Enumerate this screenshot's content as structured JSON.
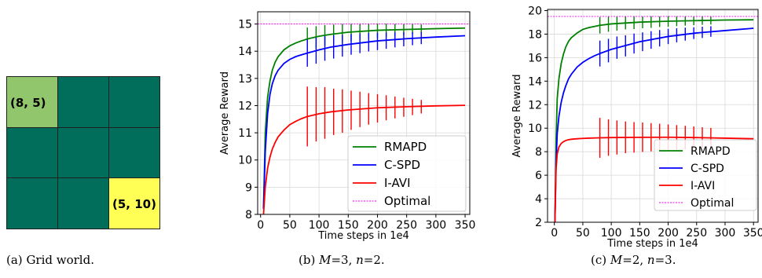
{
  "colors": {
    "grid_cell": "#006e5a",
    "grid_start": "#92c66c",
    "grid_goal": "#ffff55",
    "rmapd": "#008000",
    "cspd": "#0000ff",
    "iavi": "#ff0000",
    "optimal": "#ee00ee"
  },
  "grid_world": {
    "rows": 3,
    "cols": 3,
    "start": {
      "row": 0,
      "col": 0,
      "label": "(8, 5)"
    },
    "goal": {
      "row": 2,
      "col": 2,
      "label": "(5, 10)"
    }
  },
  "captions": {
    "a": {
      "tag": "(a)",
      "text": "Grid world."
    },
    "b": {
      "tag": "(b)",
      "m": "M",
      "m_val": "=3, ",
      "n": "n",
      "n_val": "=2."
    },
    "c": {
      "tag": "(c)",
      "m": "M",
      "m_val": "=2, ",
      "n": "n",
      "n_val": "=3."
    }
  },
  "chart_data": [
    {
      "type": "line",
      "xlabel": "Time steps in 1e4",
      "ylabel": "Average Reward",
      "xlim": [
        -5,
        358
      ],
      "ylim": [
        8,
        15.45
      ],
      "xticks": [
        0,
        50,
        100,
        150,
        200,
        250,
        300,
        350
      ],
      "yticks": [
        8,
        9,
        10,
        11,
        12,
        13,
        14,
        15
      ],
      "grid": true,
      "legend_position": "lower-right",
      "series": [
        {
          "name": "RMAPD",
          "color_key": "rmapd",
          "x": [
            5,
            8,
            12,
            16,
            20,
            25,
            30,
            40,
            50,
            60,
            70,
            80,
            100,
            120,
            150,
            200,
            250,
            300,
            350
          ],
          "y": [
            8.2,
            11.0,
            12.3,
            12.9,
            13.3,
            13.6,
            13.8,
            14.05,
            14.2,
            14.3,
            14.38,
            14.45,
            14.55,
            14.62,
            14.7,
            14.77,
            14.8,
            14.83,
            14.85
          ],
          "errorbars": {
            "x": [
              80,
              95,
              110,
              125,
              140,
              155,
              170,
              185,
              200,
              215,
              230,
              245,
              260,
              275
            ],
            "y": [
              14.45,
              14.52,
              14.58,
              14.62,
              14.66,
              14.69,
              14.72,
              14.74,
              14.76,
              14.77,
              14.78,
              14.8,
              14.81,
              14.82
            ],
            "err": [
              0.42,
              0.4,
              0.38,
              0.36,
              0.34,
              0.32,
              0.3,
              0.28,
              0.26,
              0.24,
              0.22,
              0.2,
              0.18,
              0.16
            ]
          }
        },
        {
          "name": "C-SPD",
          "color_key": "cspd",
          "x": [
            5,
            8,
            12,
            16,
            20,
            25,
            30,
            40,
            50,
            60,
            70,
            80,
            100,
            120,
            150,
            200,
            250,
            300,
            350
          ],
          "y": [
            8.2,
            10.3,
            11.7,
            12.4,
            12.8,
            13.1,
            13.3,
            13.55,
            13.7,
            13.8,
            13.87,
            13.93,
            14.05,
            14.15,
            14.25,
            14.38,
            14.46,
            14.52,
            14.57
          ],
          "errorbars": {
            "x": [
              80,
              95,
              110,
              125,
              140,
              155,
              170,
              185,
              200,
              215,
              230,
              245,
              260,
              275
            ],
            "y": [
              13.93,
              14.02,
              14.1,
              14.16,
              14.2,
              14.25,
              14.29,
              14.33,
              14.36,
              14.39,
              14.42,
              14.44,
              14.46,
              14.48
            ],
            "err": [
              0.5,
              0.48,
              0.45,
              0.43,
              0.4,
              0.38,
              0.36,
              0.34,
              0.32,
              0.3,
              0.28,
              0.26,
              0.24,
              0.22
            ]
          }
        },
        {
          "name": "I-AVI",
          "color_key": "iavi",
          "x": [
            5,
            8,
            12,
            16,
            20,
            25,
            30,
            40,
            50,
            60,
            70,
            80,
            100,
            120,
            150,
            200,
            250,
            300,
            350
          ],
          "y": [
            8.0,
            9.0,
            9.7,
            10.1,
            10.4,
            10.65,
            10.85,
            11.1,
            11.3,
            11.42,
            11.52,
            11.6,
            11.7,
            11.77,
            11.84,
            11.92,
            11.96,
            11.99,
            12.01
          ],
          "errorbars": {
            "x": [
              80,
              95,
              110,
              125,
              140,
              155,
              170,
              185,
              200,
              215,
              230,
              245,
              260,
              275
            ],
            "y": [
              11.6,
              11.68,
              11.73,
              11.77,
              11.8,
              11.83,
              11.86,
              11.88,
              11.9,
              11.92,
              11.93,
              11.94,
              11.95,
              11.96
            ],
            "err": [
              1.1,
              1.0,
              0.95,
              0.85,
              0.8,
              0.72,
              0.65,
              0.58,
              0.52,
              0.46,
              0.4,
              0.35,
              0.3,
              0.25
            ]
          }
        },
        {
          "name": "Optimal",
          "color_key": "optimal",
          "dashed": true,
          "x": [
            -5,
            358
          ],
          "y": [
            15.0,
            15.0
          ]
        }
      ]
    },
    {
      "type": "line",
      "xlabel": "Time steps in 1e4",
      "ylabel": "Average Reward",
      "xlim": [
        -12,
        358
      ],
      "ylim": [
        2,
        20.1
      ],
      "xticks": [
        0,
        50,
        100,
        150,
        200,
        250,
        300,
        350
      ],
      "yticks": [
        2,
        4,
        6,
        8,
        10,
        12,
        14,
        16,
        18,
        20
      ],
      "grid": true,
      "legend_position": "lower-right",
      "series": [
        {
          "name": "RMAPD",
          "color_key": "rmapd",
          "x": [
            1,
            3,
            5,
            8,
            12,
            16,
            20,
            25,
            30,
            40,
            50,
            60,
            70,
            80,
            100,
            150,
            200,
            250,
            300,
            350
          ],
          "y": [
            2.0,
            9.0,
            12.5,
            14.2,
            15.5,
            16.3,
            16.9,
            17.4,
            17.7,
            18.1,
            18.4,
            18.55,
            18.65,
            18.75,
            18.87,
            19.02,
            19.1,
            19.15,
            19.2,
            19.22
          ],
          "errorbars": {
            "x": [
              80,
              95,
              110,
              125,
              140,
              155,
              170,
              185,
              200,
              215,
              230,
              245,
              260,
              275
            ],
            "y": [
              18.75,
              18.85,
              18.9,
              18.95,
              18.98,
              19.0,
              19.03,
              19.05,
              19.08,
              19.1,
              19.12,
              19.14,
              19.15,
              19.16
            ],
            "err": [
              0.7,
              0.65,
              0.6,
              0.55,
              0.55,
              0.5,
              0.5,
              0.45,
              0.45,
              0.42,
              0.4,
              0.38,
              0.36,
              0.34
            ]
          }
        },
        {
          "name": "C-SPD",
          "color_key": "cspd",
          "x": [
            1,
            3,
            5,
            8,
            12,
            16,
            20,
            25,
            30,
            40,
            50,
            60,
            70,
            80,
            100,
            150,
            200,
            250,
            300,
            350
          ],
          "y": [
            2.0,
            7.0,
            9.5,
            11.0,
            12.2,
            13.0,
            13.6,
            14.2,
            14.6,
            15.2,
            15.6,
            15.9,
            16.15,
            16.35,
            16.7,
            17.35,
            17.8,
            18.1,
            18.3,
            18.5
          ],
          "errorbars": {
            "x": [
              80,
              95,
              110,
              125,
              140,
              155,
              170,
              185,
              200,
              215,
              230,
              245,
              260,
              275
            ],
            "y": [
              16.35,
              16.6,
              16.85,
              17.0,
              17.2,
              17.35,
              17.5,
              17.65,
              17.8,
              17.9,
              18.0,
              18.08,
              18.15,
              18.22
            ],
            "err": [
              1.1,
              1.0,
              0.95,
              0.9,
              0.85,
              0.8,
              0.75,
              0.7,
              0.65,
              0.6,
              0.55,
              0.5,
              0.48,
              0.45
            ]
          }
        },
        {
          "name": "I-AVI",
          "color_key": "iavi",
          "x": [
            1,
            3,
            5,
            8,
            12,
            16,
            20,
            25,
            30,
            40,
            50,
            60,
            80,
            100,
            150,
            200,
            250,
            300,
            350
          ],
          "y": [
            2.0,
            6.5,
            7.8,
            8.4,
            8.7,
            8.85,
            8.95,
            9.02,
            9.06,
            9.1,
            9.13,
            9.15,
            9.18,
            9.2,
            9.22,
            9.23,
            9.2,
            9.15,
            9.1
          ],
          "errorbars": {
            "x": [
              80,
              95,
              110,
              125,
              140,
              155,
              170,
              185,
              200,
              215,
              230,
              245,
              260,
              275
            ],
            "y": [
              9.18,
              9.2,
              9.21,
              9.22,
              9.22,
              9.23,
              9.23,
              9.23,
              9.22,
              9.21,
              9.2,
              9.19,
              9.18,
              9.17
            ],
            "err": [
              1.7,
              1.55,
              1.45,
              1.35,
              1.3,
              1.25,
              1.2,
              1.15,
              1.1,
              1.05,
              1.0,
              0.95,
              0.9,
              0.85
            ]
          }
        },
        {
          "name": "Optimal",
          "color_key": "optimal",
          "dashed": true,
          "x": [
            -12,
            358
          ],
          "y": [
            19.5,
            19.5
          ]
        }
      ]
    }
  ]
}
